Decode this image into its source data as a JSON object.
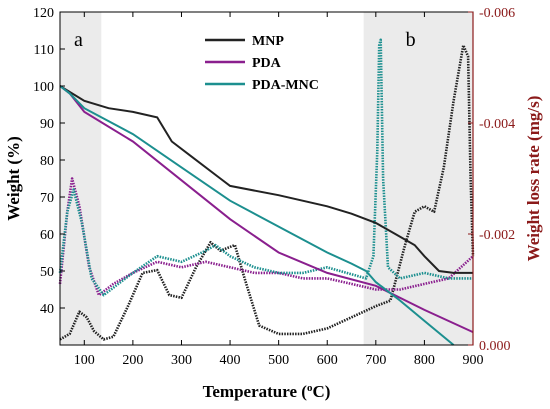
{
  "chart_data": {
    "type": "line",
    "title": "",
    "xlabel": "Temperature (ºC)",
    "xlabel_parts": {
      "base": "Temperature (",
      "sup": "o",
      "tail": "C)"
    },
    "ylabel_left": "Weight (%)",
    "ylabel_right": "Weight loss rate (mg/s)",
    "xlim": [
      50,
      900
    ],
    "ylim_left": [
      30,
      120
    ],
    "ylim_right": [
      0,
      -0.006
    ],
    "x_ticks": [
      "100",
      "200",
      "300",
      "400",
      "500",
      "600",
      "700",
      "800",
      "900"
    ],
    "x_tick_values": [
      100,
      200,
      300,
      400,
      500,
      600,
      700,
      800,
      900
    ],
    "y_left_ticks": [
      "40",
      "50",
      "60",
      "70",
      "80",
      "90",
      "100",
      "110",
      "120"
    ],
    "y_left_tick_values": [
      40,
      50,
      60,
      70,
      80,
      90,
      100,
      110,
      120
    ],
    "y_right_ticks": [
      "0.000",
      "-0.002",
      "-0.004",
      "-0.006"
    ],
    "y_right_tick_values": [
      0,
      -0.002,
      -0.004,
      -0.006
    ],
    "shaded_regions": [
      {
        "label": "a",
        "x_range": [
          50,
          135
        ]
      },
      {
        "label": "b",
        "x_range": [
          675,
          900
        ]
      }
    ],
    "colors": {
      "MNP": "#222222",
      "PDA": "#8a1f8e",
      "PDA-MNC": "#1c8f8f",
      "right_axis": "#8b1a1a",
      "shade": "#ebebeb"
    },
    "legend_position": "top-center",
    "series": [
      {
        "name": "MNP",
        "axis": "left",
        "kind": "weight",
        "x": [
          50,
          100,
          150,
          200,
          250,
          280,
          320,
          380,
          400,
          500,
          600,
          650,
          700,
          740,
          780,
          800,
          830,
          860,
          900
        ],
        "y": [
          100,
          96,
          94,
          93,
          91.5,
          85,
          81,
          75,
          73,
          70.5,
          67.5,
          65.5,
          63,
          60,
          57,
          54,
          50,
          49.5,
          49.5
        ]
      },
      {
        "name": "PDA",
        "axis": "left",
        "kind": "weight",
        "x": [
          50,
          70,
          100,
          200,
          300,
          400,
          500,
          600,
          700,
          800,
          900
        ],
        "y": [
          100,
          98,
          93,
          85,
          74.5,
          64,
          55,
          49.5,
          46,
          39.5,
          33.5
        ]
      },
      {
        "name": "PDA-MNC",
        "axis": "left",
        "kind": "weight",
        "x": [
          50,
          70,
          100,
          200,
          300,
          400,
          500,
          600,
          650,
          680,
          700,
          750,
          800,
          860
        ],
        "y": [
          100,
          98,
          94,
          87,
          78,
          69,
          62,
          55,
          52,
          50,
          47,
          42,
          36.5,
          30
        ]
      },
      {
        "name": "MNP",
        "axis": "right",
        "kind": "rate",
        "x": [
          50,
          70,
          90,
          105,
          120,
          140,
          160,
          190,
          220,
          250,
          275,
          300,
          330,
          360,
          380,
          410,
          430,
          460,
          500,
          550,
          600,
          650,
          700,
          730,
          760,
          780,
          800,
          820,
          840,
          860,
          880,
          890,
          895,
          900
        ],
        "y": [
          -0.0001,
          -0.0002,
          -0.0006,
          -0.0005,
          -0.00025,
          -0.0001,
          -0.00015,
          -0.0007,
          -0.0013,
          -0.00135,
          -0.0009,
          -0.00085,
          -0.0014,
          -0.00185,
          -0.0017,
          -0.0018,
          -0.0012,
          -0.00035,
          -0.0002,
          -0.0002,
          -0.0003,
          -0.0005,
          -0.0007,
          -0.0008,
          -0.0018,
          -0.0024,
          -0.0025,
          -0.0024,
          -0.0032,
          -0.0044,
          -0.0054,
          -0.0052,
          -0.003,
          -0.0016
        ]
      },
      {
        "name": "PDA",
        "axis": "right",
        "kind": "rate",
        "x": [
          50,
          65,
          75,
          90,
          110,
          130,
          160,
          200,
          250,
          300,
          350,
          400,
          450,
          500,
          550,
          600,
          650,
          700,
          750,
          800,
          850,
          900
        ],
        "y": [
          -0.0011,
          -0.0024,
          -0.003,
          -0.0025,
          -0.0014,
          -0.0009,
          -0.0011,
          -0.0013,
          -0.0015,
          -0.0014,
          -0.0015,
          -0.0014,
          -0.0013,
          -0.0013,
          -0.0012,
          -0.0012,
          -0.0011,
          -0.001,
          -0.001,
          -0.0011,
          -0.0012,
          -0.0016
        ]
      },
      {
        "name": "PDA-MNC",
        "axis": "right",
        "kind": "rate",
        "x": [
          50,
          65,
          78,
          95,
          115,
          140,
          170,
          200,
          250,
          300,
          350,
          370,
          400,
          450,
          500,
          550,
          600,
          640,
          680,
          695,
          703,
          707,
          710,
          715,
          725,
          750,
          800,
          850,
          900
        ],
        "y": [
          -0.0013,
          -0.0024,
          -0.0028,
          -0.0022,
          -0.0012,
          -0.0009,
          -0.0011,
          -0.0013,
          -0.0016,
          -0.0015,
          -0.0017,
          -0.0018,
          -0.0016,
          -0.0014,
          -0.0013,
          -0.0013,
          -0.0014,
          -0.0013,
          -0.0012,
          -0.0016,
          -0.0035,
          -0.0054,
          -0.0055,
          -0.003,
          -0.0014,
          -0.0012,
          -0.0013,
          -0.0012,
          -0.0012
        ]
      }
    ]
  }
}
